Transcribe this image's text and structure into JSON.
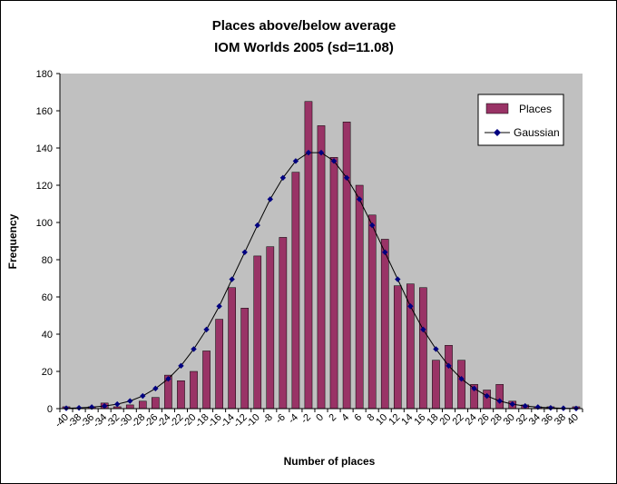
{
  "chart_data": {
    "type": "bar",
    "title": "Places above/below average",
    "subtitle": "IOM Worlds 2005 (sd=11.08)",
    "xlabel": "Number of places",
    "ylabel": "Frequency",
    "ylim": [
      0,
      180
    ],
    "yticks": [
      0,
      20,
      40,
      60,
      80,
      100,
      120,
      140,
      160,
      180
    ],
    "xtick_labels": [
      "-40",
      "-38",
      "-36",
      "-34",
      "-32",
      "-30",
      "-28",
      "-26",
      "-24",
      "-22",
      "-20",
      "-18",
      "-16",
      "-14",
      "-12",
      "-10",
      "-8",
      "-6",
      "-4",
      "-2",
      "0",
      "2",
      "4",
      "6",
      "8",
      "10",
      "12",
      "14",
      "16",
      "18",
      "20",
      "22",
      "24",
      "26",
      "28",
      "30",
      "32",
      "34",
      "36",
      "38",
      "40"
    ],
    "x": [
      -40,
      -38,
      -36,
      -34,
      -32,
      -30,
      -28,
      -26,
      -24,
      -22,
      -20,
      -18,
      -16,
      -14,
      -12,
      -10,
      -8,
      -6,
      -4,
      -2,
      0,
      2,
      4,
      6,
      8,
      10,
      12,
      14,
      16,
      18,
      20,
      22,
      24,
      26,
      28,
      30,
      32,
      34,
      36,
      38,
      40
    ],
    "grid": false,
    "legend_position": "top-right",
    "colors": {
      "plot_background": "#c0c0c0",
      "bar_fill": "#993366",
      "line": "#000000",
      "marker": "#000080"
    },
    "series": [
      {
        "name": "Places",
        "type": "bar",
        "values": [
          1,
          0,
          1,
          3,
          1,
          2,
          4,
          6,
          18,
          15,
          20,
          31,
          48,
          65,
          54,
          82,
          87,
          92,
          127,
          165,
          152,
          135,
          154,
          120,
          104,
          91,
          66,
          67,
          65,
          26,
          34,
          26,
          13,
          10,
          13,
          4,
          2,
          1,
          1,
          0,
          1
        ]
      },
      {
        "name": "Gaussian",
        "type": "line",
        "values": [
          0.2,
          0.4,
          0.8,
          1.4,
          2.4,
          4.1,
          6.8,
          10.8,
          16.0,
          23.0,
          32.0,
          42.5,
          55.0,
          69.5,
          84.0,
          98.5,
          112.5,
          124.0,
          133.0,
          137.5,
          137.5,
          133.0,
          124.0,
          112.5,
          98.5,
          84.0,
          69.5,
          55.0,
          42.5,
          32.0,
          23.0,
          16.0,
          10.8,
          6.8,
          4.1,
          2.4,
          1.4,
          0.8,
          0.4,
          0.2,
          0.1
        ]
      }
    ]
  }
}
